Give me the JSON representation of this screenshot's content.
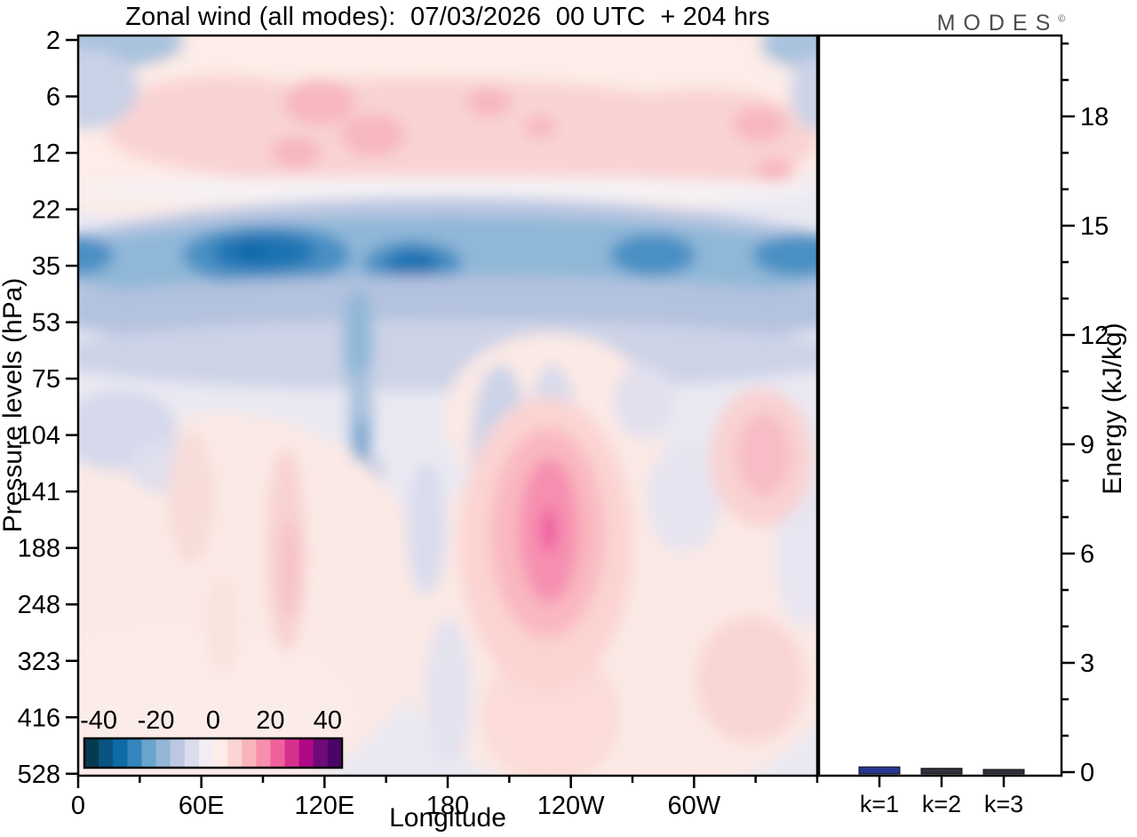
{
  "title": "Zonal wind (all modes):  07/03/2026  00 UTC  + 204 hrs",
  "logo": {
    "text": "MODES",
    "superscript": "©"
  },
  "chart_data": [
    {
      "type": "heatmap",
      "title": "Zonal wind (all modes): 07/03/2026 00 UTC + 204 hrs",
      "xlabel": "Longitude",
      "ylabel": "Pressure levels (hPa)",
      "x_tick_labels": [
        "0",
        "60E",
        "120E",
        "180",
        "120W",
        "60W"
      ],
      "x_tick_degrees": [
        0,
        60,
        120,
        180,
        240,
        300
      ],
      "x_minor_degrees": [
        30,
        90,
        150,
        210,
        270,
        330,
        360
      ],
      "x_range_deg": [
        0,
        360
      ],
      "y_tick_pressures_hPa": [
        "2",
        "6",
        "12",
        "22",
        "35",
        "53",
        "75",
        "104",
        "141",
        "188",
        "248",
        "323",
        "416",
        "528"
      ],
      "colorbar": {
        "tick_labels": [
          "-40",
          "-20",
          "0",
          "20",
          "40"
        ],
        "tick_values": [
          -40,
          -20,
          0,
          20,
          40
        ],
        "level_min": -45,
        "level_max": 45,
        "level_step": 5,
        "colors": [
          "#073a52",
          "#0b5380",
          "#0d6ba6",
          "#3585bd",
          "#69a4cd",
          "#93b5d7",
          "#bec7e2",
          "#dcdcec",
          "#f2edf4",
          "#fdece7",
          "#fbd5d3",
          "#f9b4bb",
          "#f78fad",
          "#f0609d",
          "#d8308f",
          "#ae0886",
          "#6e0b78",
          "#4a0566"
        ]
      },
      "features": [
        "Pink band +5 to +15 across all longitudes between 2 and 12 hPa, strongest pockets (+15) near 120E-150E and 170W",
        "Strong blue band -10 to -30 across all longitudes between 22 and 53 hPa, darkest cores (about -30) near 85E and 150E",
        "Weak blue streak descending near 135E from 53 to 141 hPa",
        "Pink maximum +15 to +25 centered near 130W between 141 and 248 hPa",
        "Pink patch +10 to +15 near 30W around 104-141 hPa and +5 to +10 near 35W around 248-416 hPa",
        "Background mostly near zero (pale lavender / pale pink) elsewhere"
      ]
    },
    {
      "type": "bar",
      "categories": [
        "k=1",
        "k=2",
        "k=3"
      ],
      "values": [
        0.12,
        0.08,
        0.05
      ],
      "bar_colors": [
        "#283593",
        "#30303a",
        "#30303a"
      ],
      "ylabel": "Energy (kJ/kg)",
      "ylim": [
        0,
        20.2
      ],
      "y_major_ticks": [
        0,
        3,
        6,
        9,
        12,
        15,
        18
      ],
      "y_minor_step": 1,
      "legend": "none",
      "grid": "off"
    }
  ]
}
